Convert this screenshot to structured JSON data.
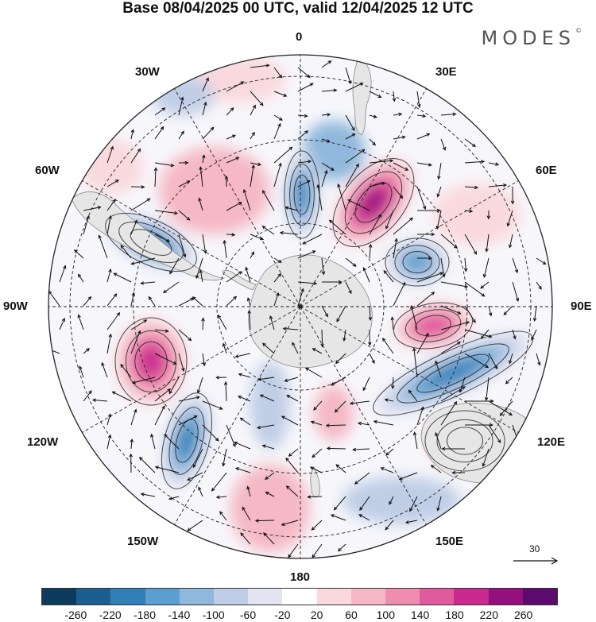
{
  "title": "Base 08/04/2025 00 UTC, valid 12/04/2025 12 UTC",
  "brand": "MODES",
  "brand_mark": "©",
  "longitude_labels": {
    "top": "0",
    "top_right": "30E",
    "right_upper": "60E",
    "right": "90E",
    "right_lower": "120E",
    "bottom_right": "150E",
    "bottom": "180",
    "bottom_left": "150W",
    "left_lower": "120W",
    "left": "90W",
    "left_upper": "60W",
    "top_left": "30W"
  },
  "reference_vector": {
    "label": "30"
  },
  "colorbar": {
    "colors": [
      "#0d3b5e",
      "#1a5f8f",
      "#2f7fb8",
      "#5a9fcf",
      "#8fb8dc",
      "#bfcde6",
      "#e3e4f1",
      "#ffffff",
      "#f9d9dd",
      "#f5b8c4",
      "#ee8db0",
      "#e25a9e",
      "#c82a8e",
      "#94107e",
      "#5c0a6d"
    ],
    "ticks": [
      "-260",
      "-220",
      "-180",
      "-140",
      "-100",
      "-60",
      "-20",
      "20",
      "60",
      "100",
      "140",
      "180",
      "220",
      "260"
    ]
  },
  "anomalies": [
    {
      "name": "low-atlantic-north",
      "value": -200
    },
    {
      "name": "high-indian-west",
      "value": 240
    },
    {
      "name": "low-southern-atlantic-west",
      "value": -180
    },
    {
      "name": "low-indian",
      "value": -160
    },
    {
      "name": "high-indian-east",
      "value": 180
    },
    {
      "name": "low-australia-south",
      "value": -200
    },
    {
      "name": "high-pacific-south-east",
      "value": 200
    },
    {
      "name": "low-pacific-south",
      "value": -200
    },
    {
      "name": "high-australia",
      "value": 120
    }
  ]
}
